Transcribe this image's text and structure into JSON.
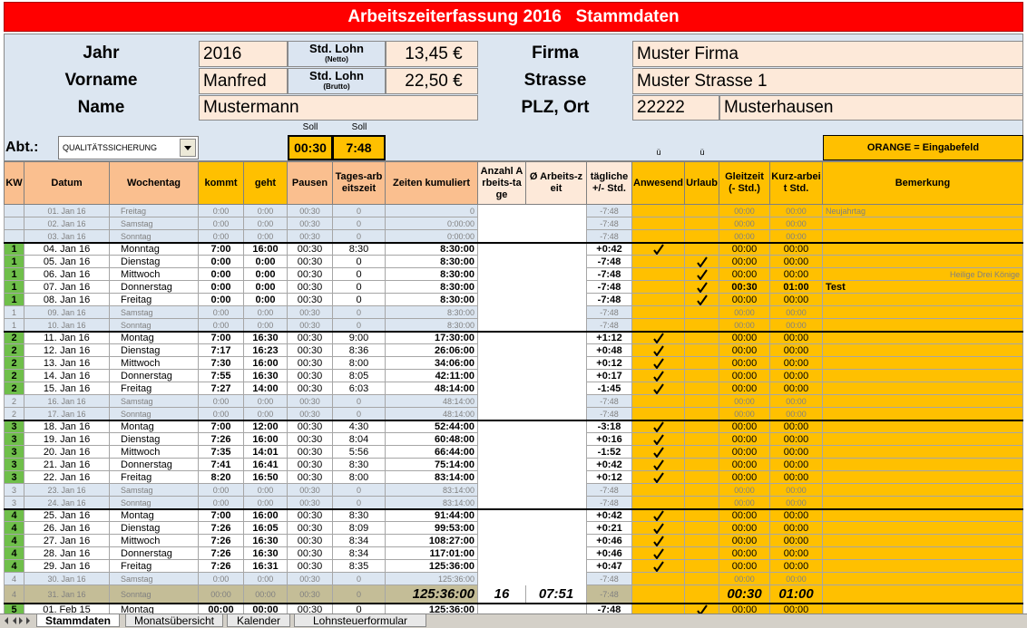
{
  "header": {
    "title": "Arbeitszeiterfassung 2016   Stammdaten"
  },
  "master": {
    "year_label": "Jahr",
    "year": "2016",
    "first_name_label": "Vorname",
    "first_name": "Manfred",
    "name_label": "Name",
    "name": "Mustermann",
    "net_wage_label": "Std. Lohn",
    "net_wage_note": "(Netto)",
    "net_wage": "13,45 €",
    "gross_wage_label": "Std. Lohn",
    "gross_wage_note": "(Brutto)",
    "gross_wage": "22,50 €",
    "company_label": "Firma",
    "company": "Muster Firma",
    "street_label": "Strasse",
    "street": "Muster Strasse 1",
    "city_label": "PLZ, Ort",
    "zip": "22222",
    "city": "Musterhausen"
  },
  "settings": {
    "dept_label": "Abt.:",
    "dept": "QUALITÄTSSICHERUNG",
    "target_labels": [
      "Soll",
      "Soll"
    ],
    "break_target": "00:30",
    "daily_target": "7:48",
    "check_hints": [
      "ü",
      "ü"
    ],
    "legend": "ORANGE = Eingabefeld"
  },
  "columns": [
    "KW",
    "Datum",
    "Wochentag",
    "kommt",
    "geht",
    "Pausen",
    "Tages-arbeitszeit",
    "Zeiten kumuliert",
    "Anzahl Arbeits-tage",
    "Ø Arbeits-zeit",
    "tägliche +/- Std.",
    "Anwesend",
    "Urlaub",
    "Gleitzeit (- Std.)",
    "Kurz-arbeit Std.",
    "Bemerkung"
  ],
  "rows": [
    {
      "kind": "off",
      "date": "01. Jan 16",
      "day": "Freitag",
      "in": "0:00",
      "out": "0:00",
      "pause": "00:30",
      "hours": "0",
      "cum": "0",
      "diff": "-7:48",
      "flex": "00:00",
      "short": "00:00",
      "remark": "Neujahrtag"
    },
    {
      "kind": "off",
      "date": "02. Jan 16",
      "day": "Samstag",
      "in": "0:00",
      "out": "0:00",
      "pause": "00:30",
      "hours": "0",
      "cum": "0:00:00",
      "diff": "-7:48",
      "flex": "00:00",
      "short": "00:00"
    },
    {
      "kind": "off",
      "date": "03. Jan 16",
      "day": "Sonntag",
      "in": "0:00",
      "out": "0:00",
      "pause": "00:30",
      "hours": "0",
      "cum": "0:00:00",
      "diff": "-7:48",
      "flex": "00:00",
      "short": "00:00"
    },
    {
      "kind": "work",
      "kw": 1,
      "date": "04. Jan 16",
      "day": "Monntag",
      "in": "7:00",
      "out": "16:00",
      "pause": "00:30",
      "hours": "8:30",
      "cum": "8:30:00",
      "diff": "+0:42",
      "present": true,
      "flex": "00:00",
      "short": "00:00"
    },
    {
      "kind": "work",
      "kw": 1,
      "date": "05. Jan 16",
      "day": "Dienstag",
      "in": "0:00",
      "out": "0:00",
      "pause": "00:30",
      "hours": "0",
      "cum": "8:30:00",
      "diff": "-7:48",
      "vacation": true,
      "flex": "00:00",
      "short": "00:00"
    },
    {
      "kind": "work",
      "kw": 1,
      "date": "06. Jan 16",
      "day": "Mittwoch",
      "in": "0:00",
      "out": "0:00",
      "pause": "00:30",
      "hours": "0",
      "cum": "8:30:00",
      "diff": "-7:48",
      "vacation": true,
      "flex": "00:00",
      "short": "00:00",
      "holiday": "Heilige Drei Könige"
    },
    {
      "kind": "work",
      "kw": 1,
      "date": "07. Jan 16",
      "day": "Donnerstag",
      "in": "0:00",
      "out": "0:00",
      "pause": "00:30",
      "hours": "0",
      "cum": "8:30:00",
      "diff": "-7:48",
      "vacation": true,
      "flex": "00:30",
      "short": "01:00",
      "marked": true,
      "note": "Test"
    },
    {
      "kind": "work",
      "kw": 1,
      "date": "08. Jan 16",
      "day": "Freitag",
      "in": "0:00",
      "out": "0:00",
      "pause": "00:30",
      "hours": "0",
      "cum": "8:30:00",
      "diff": "-7:48",
      "vacation": true,
      "flex": "00:00",
      "short": "00:00"
    },
    {
      "kind": "off",
      "kw": 1,
      "date": "09. Jan 16",
      "day": "Samstag",
      "in": "0:00",
      "out": "0:00",
      "pause": "00:30",
      "hours": "0",
      "cum": "8:30:00",
      "diff": "-7:48",
      "flex": "00:00",
      "short": "00:00"
    },
    {
      "kind": "off",
      "kw": 1,
      "date": "10. Jan 16",
      "day": "Sonntag",
      "in": "0:00",
      "out": "0:00",
      "pause": "00:30",
      "hours": "0",
      "cum": "8:30:00",
      "diff": "-7:48",
      "flex": "00:00",
      "short": "00:00"
    },
    {
      "kind": "work",
      "kw": 2,
      "date": "11. Jan 16",
      "day": "Montag",
      "in": "7:00",
      "out": "16:30",
      "pause": "00:30",
      "hours": "9:00",
      "cum": "17:30:00",
      "diff": "+1:12",
      "present": true,
      "flex": "00:00",
      "short": "00:00"
    },
    {
      "kind": "work",
      "kw": 2,
      "date": "12. Jan 16",
      "day": "Dienstag",
      "in": "7:17",
      "out": "16:23",
      "pause": "00:30",
      "hours": "8:36",
      "cum": "26:06:00",
      "diff": "+0:48",
      "present": true,
      "flex": "00:00",
      "short": "00:00"
    },
    {
      "kind": "work",
      "kw": 2,
      "date": "13. Jan 16",
      "day": "Mittwoch",
      "in": "7:30",
      "out": "16:00",
      "pause": "00:30",
      "hours": "8:00",
      "cum": "34:06:00",
      "diff": "+0:12",
      "present": true,
      "flex": "00:00",
      "short": "00:00"
    },
    {
      "kind": "work",
      "kw": 2,
      "date": "14. Jan 16",
      "day": "Donnerstag",
      "in": "7:55",
      "out": "16:30",
      "pause": "00:30",
      "hours": "8:05",
      "cum": "42:11:00",
      "diff": "+0:17",
      "present": true,
      "flex": "00:00",
      "short": "00:00"
    },
    {
      "kind": "work",
      "kw": 2,
      "date": "15. Jan 16",
      "day": "Freitag",
      "in": "7:27",
      "out": "14:00",
      "pause": "00:30",
      "hours": "6:03",
      "cum": "48:14:00",
      "diff": "-1:45",
      "present": true,
      "flex": "00:00",
      "short": "00:00"
    },
    {
      "kind": "off",
      "kw": 2,
      "date": "16. Jan 16",
      "day": "Samstag",
      "in": "0:00",
      "out": "0:00",
      "pause": "00:30",
      "hours": "0",
      "cum": "48:14:00",
      "diff": "-7:48",
      "flex": "00:00",
      "short": "00:00"
    },
    {
      "kind": "off",
      "kw": 2,
      "date": "17. Jan 16",
      "day": "Sonntag",
      "in": "0:00",
      "out": "0:00",
      "pause": "00:30",
      "hours": "0",
      "cum": "48:14:00",
      "diff": "-7:48",
      "flex": "00:00",
      "short": "00:00"
    },
    {
      "kind": "work",
      "kw": 3,
      "date": "18. Jan 16",
      "day": "Montag",
      "in": "7:00",
      "out": "12:00",
      "pause": "00:30",
      "hours": "4:30",
      "cum": "52:44:00",
      "diff": "-3:18",
      "present": true,
      "flex": "00:00",
      "short": "00:00"
    },
    {
      "kind": "work",
      "kw": 3,
      "date": "19. Jan 16",
      "day": "Dienstag",
      "in": "7:26",
      "out": "16:00",
      "pause": "00:30",
      "hours": "8:04",
      "cum": "60:48:00",
      "diff": "+0:16",
      "present": true,
      "flex": "00:00",
      "short": "00:00"
    },
    {
      "kind": "work",
      "kw": 3,
      "date": "20. Jan 16",
      "day": "Mittwoch",
      "in": "7:35",
      "out": "14:01",
      "pause": "00:30",
      "hours": "5:56",
      "cum": "66:44:00",
      "diff": "-1:52",
      "present": true,
      "flex": "00:00",
      "short": "00:00"
    },
    {
      "kind": "work",
      "kw": 3,
      "date": "21. Jan 16",
      "day": "Donnerstag",
      "in": "7:41",
      "out": "16:41",
      "pause": "00:30",
      "hours": "8:30",
      "cum": "75:14:00",
      "diff": "+0:42",
      "present": true,
      "flex": "00:00",
      "short": "00:00"
    },
    {
      "kind": "work",
      "kw": 3,
      "date": "22. Jan 16",
      "day": "Freitag",
      "in": "8:20",
      "out": "16:50",
      "pause": "00:30",
      "hours": "8:00",
      "cum": "83:14:00",
      "diff": "+0:12",
      "present": true,
      "flex": "00:00",
      "short": "00:00"
    },
    {
      "kind": "off",
      "kw": 3,
      "date": "23. Jan 16",
      "day": "Samstag",
      "in": "0:00",
      "out": "0:00",
      "pause": "00:30",
      "hours": "0",
      "cum": "83:14:00",
      "diff": "-7:48",
      "flex": "00:00",
      "short": "00:00"
    },
    {
      "kind": "off",
      "kw": 3,
      "date": "24. Jan 16",
      "day": "Sonntag",
      "in": "0:00",
      "out": "0:00",
      "pause": "00:30",
      "hours": "0",
      "cum": "83:14:00",
      "diff": "-7:48",
      "flex": "00:00",
      "short": "00:00"
    },
    {
      "kind": "work",
      "kw": 4,
      "date": "25. Jan 16",
      "day": "Montag",
      "in": "7:00",
      "out": "16:00",
      "pause": "00:30",
      "hours": "8:30",
      "cum": "91:44:00",
      "diff": "+0:42",
      "present": true,
      "flex": "00:00",
      "short": "00:00"
    },
    {
      "kind": "work",
      "kw": 4,
      "date": "26. Jan 16",
      "day": "Dienstag",
      "in": "7:26",
      "out": "16:05",
      "pause": "00:30",
      "hours": "8:09",
      "cum": "99:53:00",
      "diff": "+0:21",
      "present": true,
      "flex": "00:00",
      "short": "00:00"
    },
    {
      "kind": "work",
      "kw": 4,
      "date": "27. Jan 16",
      "day": "Mittwoch",
      "in": "7:26",
      "out": "16:30",
      "pause": "00:30",
      "hours": "8:34",
      "cum": "108:27:00",
      "diff": "+0:46",
      "present": true,
      "flex": "00:00",
      "short": "00:00"
    },
    {
      "kind": "work",
      "kw": 4,
      "date": "28. Jan 16",
      "day": "Donnerstag",
      "in": "7:26",
      "out": "16:30",
      "pause": "00:30",
      "hours": "8:34",
      "cum": "117:01:00",
      "diff": "+0:46",
      "present": true,
      "flex": "00:00",
      "short": "00:00"
    },
    {
      "kind": "work",
      "kw": 4,
      "date": "29. Jan 16",
      "day": "Freitag",
      "in": "7:26",
      "out": "16:31",
      "pause": "00:30",
      "hours": "8:35",
      "cum": "125:36:00",
      "diff": "+0:47",
      "present": true,
      "flex": "00:00",
      "short": "00:00"
    },
    {
      "kind": "off",
      "kw": 4,
      "date": "30. Jan 16",
      "day": "Samstag",
      "in": "0:00",
      "out": "0:00",
      "pause": "00:30",
      "hours": "0",
      "cum": "125:36:00",
      "diff": "-7:48",
      "flex": "00:00",
      "short": "00:00"
    },
    {
      "kind": "total",
      "kw": 4,
      "date": "31. Jan 16",
      "day": "Sonntag",
      "in": "00:00",
      "out": "00:00",
      "pause": "00:30",
      "hours": "0",
      "cum": "125:36:00",
      "workdays": 16,
      "avg": "07:51",
      "diff": "-7:48",
      "flex": "00:30",
      "short": "01:00"
    },
    {
      "kind": "work",
      "kw": 5,
      "date": "01. Feb 15",
      "day": "Montag",
      "in": "00:00",
      "out": "00:00",
      "pause": "00:30",
      "hours": "0",
      "cum": "125:36:00",
      "diff": "-7:48",
      "vacation": true,
      "flex": "00:00",
      "short": "00:00"
    }
  ],
  "tabs": [
    "Stammdaten",
    "Monatsübersicht",
    "Kalender",
    "Lohnsteuerformular"
  ]
}
